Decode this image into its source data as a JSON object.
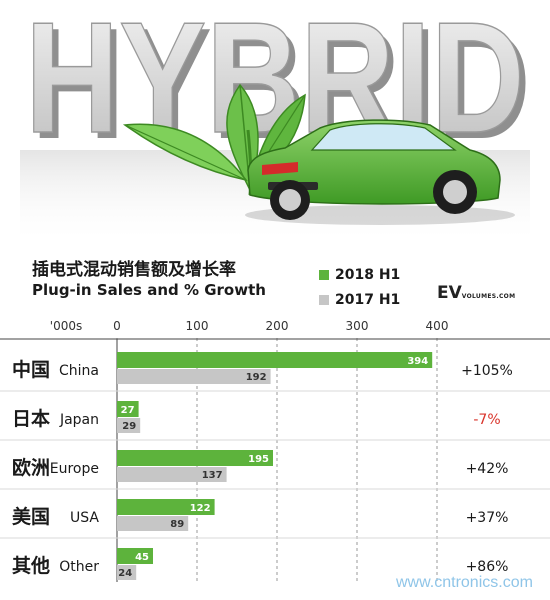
{
  "hero": {
    "word": "HYBRID"
  },
  "titles": {
    "cn": "插电式混动销售额及增长率",
    "en": "Plug-in Sales and % Growth"
  },
  "logo": {
    "main": "EV",
    "sub": "VOLUMES.COM"
  },
  "watermark": "www.cntronics.com",
  "colors": {
    "series_2018": "#5db33c",
    "series_2017": "#c6c6c6",
    "negative": "#d9342b",
    "text": "#1a1a1a"
  },
  "chart_data": {
    "type": "bar",
    "orientation": "horizontal",
    "title": "插电式混动销售额及增长率",
    "subtitle": "Plug-in Sales and % Growth",
    "unit": "'000s",
    "xlim": [
      0,
      400
    ],
    "ticks": [
      0,
      100,
      200,
      300,
      400
    ],
    "grid": true,
    "legend": "top-right",
    "categories": [
      {
        "cn": "中国",
        "en": "China"
      },
      {
        "cn": "日本",
        "en": "Japan"
      },
      {
        "cn": "欧洲",
        "en": "Europe"
      },
      {
        "cn": "美国",
        "en": "USA"
      },
      {
        "cn": "其他",
        "en": "Other"
      }
    ],
    "series": [
      {
        "name": "2018 H1",
        "values": [
          394,
          27,
          195,
          122,
          45
        ]
      },
      {
        "name": "2017 H1",
        "values": [
          192,
          29,
          137,
          89,
          24
        ]
      }
    ],
    "growth": [
      "+105%",
      "-7%",
      "+42%",
      "+37%",
      "+86%"
    ]
  }
}
